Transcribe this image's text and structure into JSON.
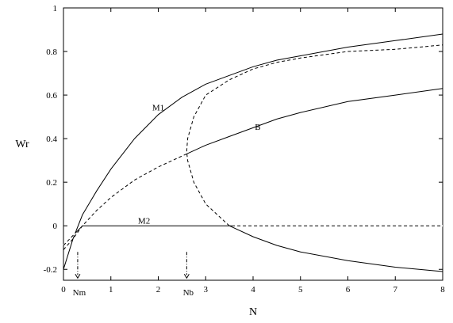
{
  "chart_data": {
    "type": "line",
    "xlabel": "N",
    "ylabel": "Wr",
    "xlim": [
      0,
      8
    ],
    "ylim": [
      -0.25,
      1
    ],
    "x_ticks": [
      0,
      1,
      2,
      3,
      4,
      5,
      6,
      7,
      8
    ],
    "y_ticks": [
      -0.2,
      0,
      0.2,
      0.4,
      0.6,
      0.8,
      1
    ],
    "grid": false,
    "legend": "none",
    "series": [
      {
        "name": "M1",
        "style": "solid",
        "x": [
          0.0,
          0.2,
          0.4,
          0.7,
          1.0,
          1.5,
          2.0,
          2.5,
          3.0,
          3.5,
          4.0,
          4.5,
          5.0,
          6.0,
          7.0,
          8.0
        ],
        "y": [
          -0.2,
          -0.06,
          0.05,
          0.16,
          0.26,
          0.4,
          0.51,
          0.59,
          0.65,
          0.69,
          0.73,
          0.76,
          0.78,
          0.82,
          0.85,
          0.88
        ]
      },
      {
        "name": "B",
        "style": "mixed",
        "x": [
          0.0,
          0.2,
          0.4,
          0.7,
          1.0,
          1.5,
          2.0,
          2.6,
          3.0,
          3.5,
          4.0,
          4.5,
          5.0,
          6.0,
          7.0,
          8.0
        ],
        "y": [
          -0.11,
          -0.06,
          0.0,
          0.07,
          0.13,
          0.21,
          0.27,
          0.33,
          0.37,
          0.41,
          0.45,
          0.49,
          0.52,
          0.57,
          0.6,
          0.63
        ],
        "dashed_until_x": 2.6
      },
      {
        "name": "M2",
        "style": "mixed",
        "x": [
          0.0,
          0.4,
          8.0
        ],
        "y": [
          -0.09,
          0.0,
          0.0
        ],
        "dashed_segments": [
          [
            0.0,
            0.25
          ],
          [
            3.55,
            8.0
          ]
        ]
      },
      {
        "name": "",
        "style": "dashed",
        "x": [
          3.5,
          3.0,
          2.75,
          2.62,
          2.6,
          2.62,
          2.75,
          3.0,
          3.5,
          4.0,
          4.5,
          5.0,
          6.0,
          7.0,
          8.0
        ],
        "y": [
          0.0,
          0.1,
          0.2,
          0.3,
          0.34,
          0.4,
          0.5,
          0.6,
          0.67,
          0.72,
          0.75,
          0.77,
          0.8,
          0.81,
          0.83
        ]
      },
      {
        "name": "",
        "style": "solid",
        "x": [
          3.5,
          4.0,
          4.5,
          5.0,
          6.0,
          7.0,
          8.0
        ],
        "y": [
          0.0,
          -0.05,
          -0.09,
          -0.12,
          -0.16,
          -0.19,
          -0.21
        ]
      }
    ],
    "annotations": [
      {
        "text": "M1",
        "x": 2.0,
        "y": 0.53
      },
      {
        "text": "B",
        "x": 4.1,
        "y": 0.44
      },
      {
        "text": "M2",
        "x": 1.7,
        "y": 0.01
      },
      {
        "text": "Nm",
        "x": 0.3,
        "arrow_from_y": -0.12,
        "arrow_to_y": -0.24
      },
      {
        "text": "Nb",
        "x": 2.6,
        "arrow_from_y": -0.12,
        "arrow_to_y": -0.24
      }
    ]
  }
}
